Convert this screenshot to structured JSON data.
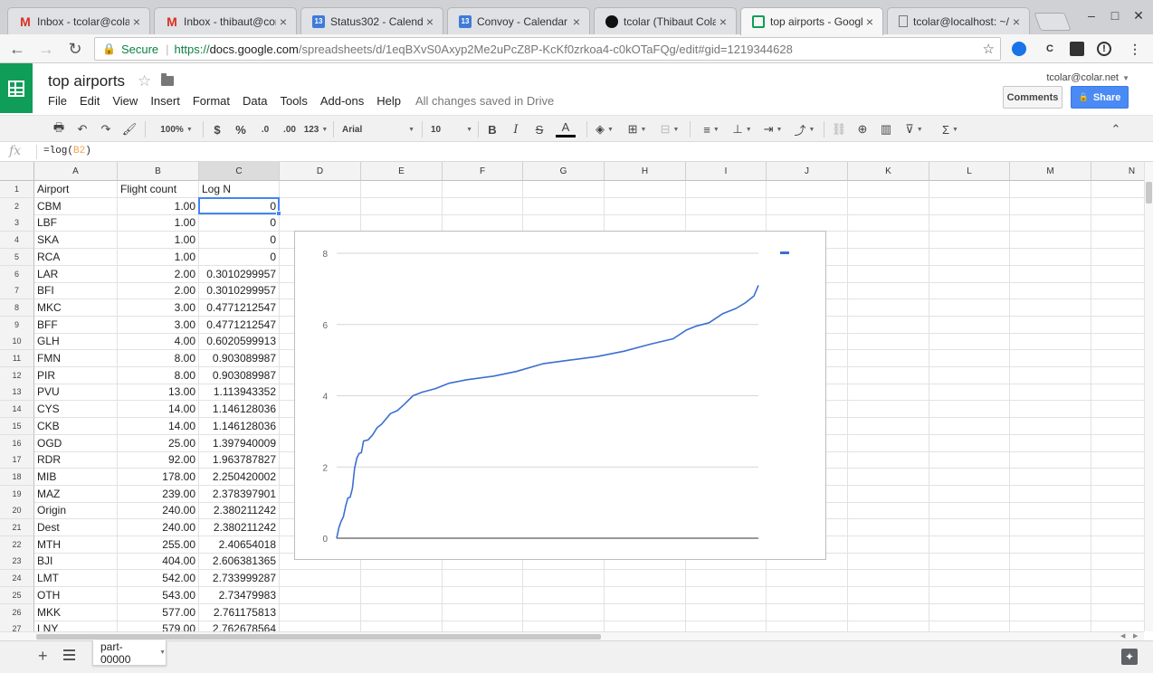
{
  "browser": {
    "tabs": [
      {
        "title": "Inbox - tcolar@colar.n",
        "icon": "gmail-icon",
        "active": false
      },
      {
        "title": "Inbox - thibaut@conv",
        "icon": "gmail-icon",
        "active": false
      },
      {
        "title": "Status302 - Calendar",
        "icon": "calendar-icon",
        "active": false
      },
      {
        "title": "Convoy - Calendar - W",
        "icon": "calendar-icon",
        "active": false
      },
      {
        "title": "tcolar (Thibaut Colar)",
        "icon": "github-icon",
        "active": false
      },
      {
        "title": "top airports - Google S",
        "icon": "sheets-icon",
        "active": true
      },
      {
        "title": "tcolar@localhost: ~/c",
        "icon": "document-icon",
        "active": false
      }
    ],
    "calendar_badge": "13",
    "close_glyph": "×",
    "secure_label": "Secure",
    "url_scheme": "https://",
    "url_host": "docs.google.com",
    "url_path": "/spreadsheets/d/1eqBXvS0Axyp2Me2uPcZ8P-KcKf0zrkoa4-c0kOTaFQg/edit#gid=1219344628"
  },
  "sheets": {
    "title": "top airports",
    "menus": [
      "File",
      "Edit",
      "View",
      "Insert",
      "Format",
      "Data",
      "Tools",
      "Add-ons",
      "Help"
    ],
    "save_status": "All changes saved in Drive",
    "account": "tcolar@colar.net",
    "comments_label": "Comments",
    "share_label": "Share",
    "brand_color": "#0f9d58",
    "share_color": "#4a8af4"
  },
  "toolbar": {
    "zoom": "100%",
    "currency": "$",
    "percent": "%",
    "decrease_decimals": ".0",
    "increase_decimals": ".00",
    "more_formats": "123",
    "font": "Arial",
    "font_size": "10",
    "bold": "B",
    "italic": "I",
    "strikethrough": "S",
    "text_color": "A"
  },
  "formula_bar": {
    "fx": "fx",
    "prefix": "=log(",
    "ref": "B2",
    "suffix": ")"
  },
  "grid": {
    "columns": [
      "A",
      "B",
      "C",
      "D",
      "E",
      "F",
      "G",
      "H",
      "I",
      "J",
      "K",
      "L",
      "M",
      "N"
    ],
    "selected_column": "C",
    "rows": [
      {
        "n": "1",
        "a": "Airport",
        "b": "Flight count",
        "c": "Log N",
        "header": true
      },
      {
        "n": "2",
        "a": "CBM",
        "b": "1.00",
        "c": "0"
      },
      {
        "n": "3",
        "a": "LBF",
        "b": "1.00",
        "c": "0"
      },
      {
        "n": "4",
        "a": "SKA",
        "b": "1.00",
        "c": "0"
      },
      {
        "n": "5",
        "a": "RCA",
        "b": "1.00",
        "c": "0"
      },
      {
        "n": "6",
        "a": "LAR",
        "b": "2.00",
        "c": "0.3010299957"
      },
      {
        "n": "7",
        "a": "BFI",
        "b": "2.00",
        "c": "0.3010299957"
      },
      {
        "n": "8",
        "a": "MKC",
        "b": "3.00",
        "c": "0.4771212547"
      },
      {
        "n": "9",
        "a": "BFF",
        "b": "3.00",
        "c": "0.4771212547"
      },
      {
        "n": "10",
        "a": "GLH",
        "b": "4.00",
        "c": "0.6020599913"
      },
      {
        "n": "11",
        "a": "FMN",
        "b": "8.00",
        "c": "0.903089987"
      },
      {
        "n": "12",
        "a": "PIR",
        "b": "8.00",
        "c": "0.903089987"
      },
      {
        "n": "13",
        "a": "PVU",
        "b": "13.00",
        "c": "1.113943352"
      },
      {
        "n": "14",
        "a": "CYS",
        "b": "14.00",
        "c": "1.146128036"
      },
      {
        "n": "15",
        "a": "CKB",
        "b": "14.00",
        "c": "1.146128036"
      },
      {
        "n": "16",
        "a": "OGD",
        "b": "25.00",
        "c": "1.397940009"
      },
      {
        "n": "17",
        "a": "RDR",
        "b": "92.00",
        "c": "1.963787827"
      },
      {
        "n": "18",
        "a": "MIB",
        "b": "178.00",
        "c": "2.250420002"
      },
      {
        "n": "19",
        "a": "MAZ",
        "b": "239.00",
        "c": "2.378397901"
      },
      {
        "n": "20",
        "a": "Origin",
        "b": "240.00",
        "c": "2.380211242"
      },
      {
        "n": "21",
        "a": "Dest",
        "b": "240.00",
        "c": "2.380211242"
      },
      {
        "n": "22",
        "a": "MTH",
        "b": "255.00",
        "c": "2.40654018"
      },
      {
        "n": "23",
        "a": "BJI",
        "b": "404.00",
        "c": "2.606381365"
      },
      {
        "n": "24",
        "a": "LMT",
        "b": "542.00",
        "c": "2.733999287"
      },
      {
        "n": "25",
        "a": "OTH",
        "b": "543.00",
        "c": "2.73479983"
      },
      {
        "n": "26",
        "a": "MKK",
        "b": "577.00",
        "c": "2.761175813"
      },
      {
        "n": "27",
        "a": "LNY",
        "b": "579.00",
        "c": "2.762678564"
      }
    ]
  },
  "chart_data": {
    "type": "line",
    "title": "",
    "xlabel": "",
    "ylabel": "",
    "ylim": [
      0,
      8
    ],
    "yticks": [
      "0",
      "2",
      "4",
      "6",
      "8"
    ],
    "grid": true,
    "legend_position": "top-right",
    "series": [
      {
        "color": "#3c6fd0",
        "x": [
          0,
          1,
          2,
          3,
          4,
          5,
          6,
          7,
          8,
          9,
          10,
          11,
          12,
          14,
          16,
          18,
          20,
          24,
          27,
          30,
          34,
          38,
          44,
          50,
          58,
          70,
          80,
          92,
          104,
          116,
          128,
          140,
          150,
          156,
          160,
          166,
          172,
          178,
          182,
          186,
          188
        ],
        "values": [
          0,
          0.3,
          0.48,
          0.6,
          0.9,
          1.13,
          1.15,
          1.4,
          1.96,
          2.25,
          2.38,
          2.4,
          2.73,
          2.76,
          2.9,
          3.1,
          3.2,
          3.5,
          3.58,
          3.75,
          4.0,
          4.1,
          4.2,
          4.35,
          4.45,
          4.55,
          4.68,
          4.9,
          5.0,
          5.1,
          5.25,
          5.45,
          5.6,
          5.85,
          5.95,
          6.05,
          6.3,
          6.45,
          6.6,
          6.8,
          7.1
        ]
      }
    ]
  },
  "sheet_tabs": {
    "add": "+",
    "active_tab": "part-00000"
  }
}
